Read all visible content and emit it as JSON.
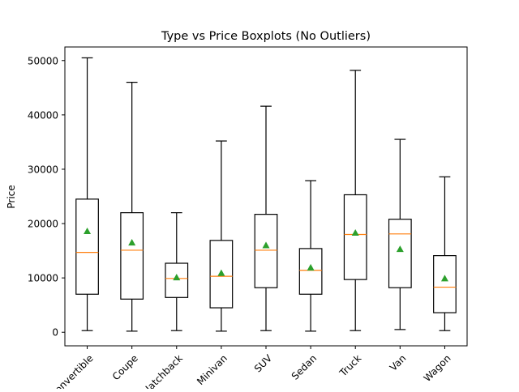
{
  "chart_data": {
    "type": "boxplot",
    "title": "Type vs Price Boxplots (No Outliers)",
    "xlabel": "",
    "ylabel": "Price",
    "ylim": [
      -2500,
      52500
    ],
    "yticks": [
      0,
      10000,
      20000,
      30000,
      40000,
      50000
    ],
    "grid": false,
    "legend": "none",
    "categories": [
      "Convertible",
      "Coupe",
      "Hatchback",
      "Minivan",
      "SUV",
      "Sedan",
      "Truck",
      "Van",
      "Wagon"
    ],
    "tick_labels": [
      "Convertible",
      "Coupe",
      "Hatchback",
      "Minivan",
      "SUV",
      "Sedan",
      "Truck",
      "Van",
      "Wagon"
    ],
    "boxes": [
      {
        "whisker_low": 300,
        "q1": 7000,
        "median": 14700,
        "q3": 24500,
        "whisker_high": 50500,
        "mean": 18600
      },
      {
        "whisker_low": 200,
        "q1": 6100,
        "median": 15100,
        "q3": 22000,
        "whisker_high": 46000,
        "mean": 16500
      },
      {
        "whisker_low": 300,
        "q1": 6400,
        "median": 9900,
        "q3": 12700,
        "whisker_high": 22000,
        "mean": 10100
      },
      {
        "whisker_low": 200,
        "q1": 4500,
        "median": 10300,
        "q3": 16900,
        "whisker_high": 35200,
        "mean": 10900
      },
      {
        "whisker_low": 300,
        "q1": 8200,
        "median": 15100,
        "q3": 21700,
        "whisker_high": 41600,
        "mean": 16000
      },
      {
        "whisker_low": 200,
        "q1": 7000,
        "median": 11400,
        "q3": 15400,
        "whisker_high": 27900,
        "mean": 11900
      },
      {
        "whisker_low": 300,
        "q1": 9700,
        "median": 18000,
        "q3": 25300,
        "whisker_high": 48200,
        "mean": 18300
      },
      {
        "whisker_low": 500,
        "q1": 8200,
        "median": 18100,
        "q3": 20800,
        "whisker_high": 35500,
        "mean": 15300
      },
      {
        "whisker_low": 300,
        "q1": 3600,
        "median": 8300,
        "q3": 14100,
        "whisker_high": 28600,
        "mean": 9900
      }
    ],
    "colors": {
      "box": "#000000",
      "median": "#ff7f0e",
      "mean_marker": "#2ca02c",
      "axes": "#000000",
      "background": "#ffffff"
    }
  }
}
